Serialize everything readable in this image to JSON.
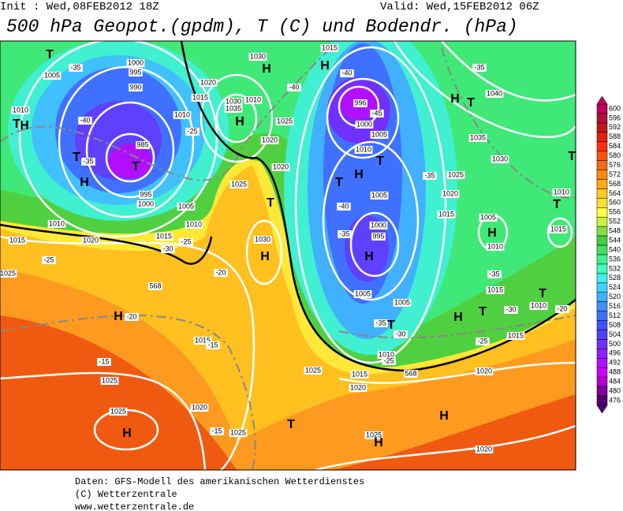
{
  "header": {
    "init": "Init : Wed,08FEB2012 18Z",
    "valid": "Valid: Wed,15FEB2012 06Z",
    "title": "500 hPa Geopot.(gpdm), T (C) und Bodendr. (hPa)"
  },
  "map": {
    "labels": [
      "T",
      "1005",
      "-35",
      "1000",
      "995",
      "990",
      "-40",
      "985",
      "T",
      "T",
      "-35",
      "995",
      "1000",
      "H",
      "1010",
      "T",
      "H",
      "1020",
      "1015",
      "1010",
      "1005",
      "1010",
      "1015",
      "-30",
      "-25",
      "-25",
      "1025",
      "-20",
      "H",
      "-20",
      "-15",
      "1025",
      "1025",
      "H",
      "1020",
      "-15",
      "1025",
      "T",
      "1015",
      "-15",
      "568",
      "1030",
      "H",
      "1025",
      "T",
      "1020",
      "1020",
      "1025",
      "H",
      "1035",
      "1030",
      "1010",
      "1020",
      "1015",
      "1010",
      "-25",
      "1030",
      "H",
      "-40",
      "1015",
      "H",
      "-40",
      "996",
      "1000",
      "-45",
      "1005",
      "1010",
      "H",
      "T",
      "T",
      "-40",
      "1005",
      "1000",
      "995",
      "-35",
      "H",
      "1005",
      "-35",
      "T",
      "1010",
      "-25",
      "1015",
      "1020",
      "1025",
      "568",
      "1020",
      "1005",
      "-30",
      "H",
      "T",
      "1015",
      "T",
      "1010",
      "-20",
      "-30",
      "-25",
      "1015",
      "H",
      "1025",
      "H",
      "1020",
      "1005",
      "H",
      "1010",
      "-35",
      "1015",
      "1020",
      "1025",
      "-35",
      "H",
      "T",
      "1040",
      "1035",
      "1030",
      "-35",
      "T",
      "1010",
      "T",
      "1015"
    ]
  },
  "legend": {
    "values": [
      600,
      596,
      592,
      588,
      584,
      580,
      576,
      572,
      568,
      564,
      560,
      556,
      552,
      548,
      544,
      540,
      536,
      532,
      528,
      524,
      520,
      516,
      512,
      508,
      504,
      500,
      496,
      492,
      488,
      484,
      480,
      476
    ],
    "colors": [
      "#c0005a",
      "#b0103a",
      "#c01818",
      "#e02010",
      "#ff3010",
      "#ff5010",
      "#ff6a10",
      "#ff8a10",
      "#ffaa10",
      "#ffc820",
      "#ffe030",
      "#ffff40",
      "#d0f040",
      "#80e040",
      "#40d040",
      "#40e060",
      "#40f090",
      "#40ffc0",
      "#40f0f0",
      "#40d0ff",
      "#40b0ff",
      "#4090ff",
      "#4070ff",
      "#4050ff",
      "#5040ff",
      "#7030ff",
      "#9020ff",
      "#b010ff",
      "#d000ff",
      "#b000d0",
      "#8000a0",
      "#500070"
    ]
  },
  "footer": {
    "line1": "Daten: GFS-Modell des amerikanischen Wetterdienstes",
    "line2": "(C) Wetterzentrale",
    "line3": "www.wetterzentrale.de"
  }
}
